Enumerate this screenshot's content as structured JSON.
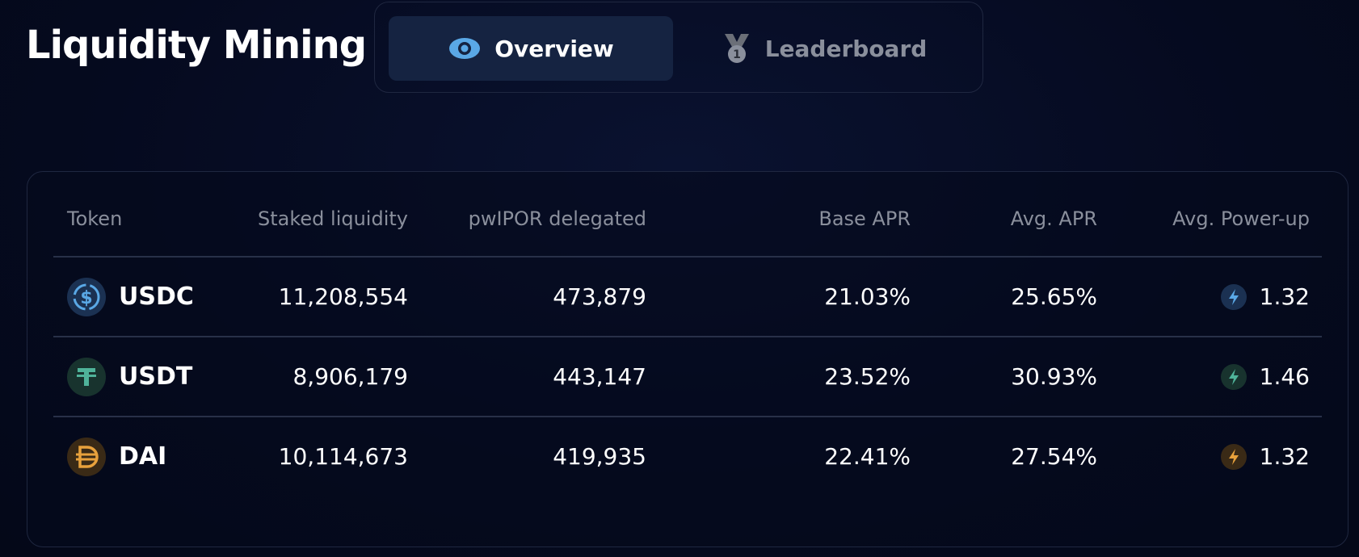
{
  "header": {
    "title": "Liquidity Mining"
  },
  "tabs": [
    {
      "label": "Overview",
      "active": true
    },
    {
      "label": "Leaderboard",
      "active": false
    }
  ],
  "table": {
    "columns": [
      "Token",
      "Staked liquidity",
      "pwIPOR delegated",
      "Base APR",
      "Avg. APR",
      "Avg. Power-up"
    ],
    "rows": [
      [
        "USDC",
        "11,208,554",
        "473,879",
        "21.03%",
        "25.65%",
        "1.32"
      ],
      [
        "USDT",
        "8,906,179",
        "443,147",
        "23.52%",
        "30.93%",
        "1.46"
      ],
      [
        "DAI",
        "10,114,673",
        "419,935",
        "22.41%",
        "27.54%",
        "1.32"
      ]
    ]
  }
}
